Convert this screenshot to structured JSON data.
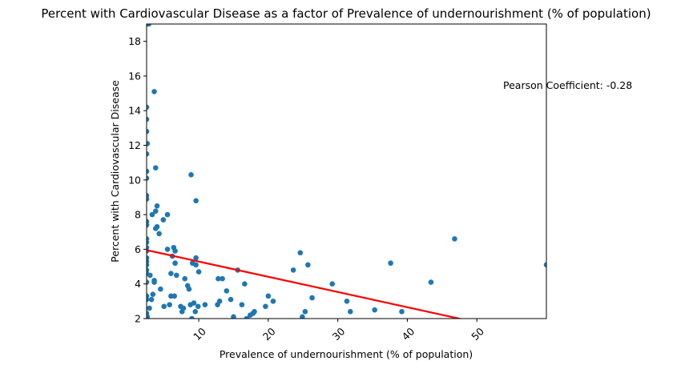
{
  "chart_data": {
    "type": "scatter",
    "title": "Percent with Cardiovascular Disease as a factor of Prevalence of undernourishment (% of population)",
    "xlabel": "Prevalence of undernourishment (% of population)",
    "ylabel": "Percent with Cardiovascular Disease",
    "xlim": [
      2.5,
      60
    ],
    "ylim": [
      2,
      19
    ],
    "xticks": [
      10,
      20,
      30,
      40,
      50
    ],
    "yticks": [
      2,
      4,
      6,
      8,
      10,
      12,
      14,
      16,
      18
    ],
    "grid": false,
    "annotation": "Pearson Coefficient: -0.28",
    "marker_color": "#1f77b4",
    "trendline_color": "#ff0000",
    "trendline": {
      "x": [
        2.5,
        48
      ],
      "y": [
        5.95,
        1.95
      ]
    },
    "points": [
      [
        2.5,
        19.0
      ],
      [
        2.8,
        19.0
      ],
      [
        2.5,
        14.2
      ],
      [
        2.5,
        13.5
      ],
      [
        2.5,
        12.8
      ],
      [
        2.6,
        12.1
      ],
      [
        2.5,
        11.5
      ],
      [
        2.5,
        10.5
      ],
      [
        2.5,
        10.1
      ],
      [
        2.5,
        9.1
      ],
      [
        2.5,
        8.9
      ],
      [
        2.5,
        7.6
      ],
      [
        2.5,
        7.4
      ],
      [
        2.5,
        6.6
      ],
      [
        2.5,
        6.4
      ],
      [
        2.5,
        6.1
      ],
      [
        2.5,
        5.9
      ],
      [
        2.5,
        5.5
      ],
      [
        2.5,
        5.3
      ],
      [
        2.5,
        5.1
      ],
      [
        2.5,
        4.8
      ],
      [
        2.5,
        4.6
      ],
      [
        2.5,
        4.1
      ],
      [
        2.5,
        3.3
      ],
      [
        2.5,
        3.1
      ],
      [
        2.5,
        2.3
      ],
      [
        2.6,
        2.1
      ],
      [
        2.9,
        2.6
      ],
      [
        3.0,
        4.5
      ],
      [
        3.2,
        3.1
      ],
      [
        3.3,
        8.0
      ],
      [
        3.4,
        3.4
      ],
      [
        3.6,
        15.1
      ],
      [
        3.6,
        4.2
      ],
      [
        3.6,
        4.1
      ],
      [
        3.8,
        7.2
      ],
      [
        3.8,
        10.7
      ],
      [
        3.8,
        8.2
      ],
      [
        4.0,
        8.5
      ],
      [
        4.0,
        7.3
      ],
      [
        4.3,
        6.9
      ],
      [
        4.5,
        3.7
      ],
      [
        4.9,
        7.7
      ],
      [
        5.0,
        2.7
      ],
      [
        5.5,
        6.0
      ],
      [
        5.5,
        8.0
      ],
      [
        5.8,
        2.8
      ],
      [
        6.0,
        4.6
      ],
      [
        6.0,
        3.3
      ],
      [
        6.2,
        5.6
      ],
      [
        6.4,
        6.1
      ],
      [
        6.5,
        3.3
      ],
      [
        6.6,
        5.9
      ],
      [
        6.6,
        5.2
      ],
      [
        6.8,
        4.5
      ],
      [
        7.4,
        2.7
      ],
      [
        7.6,
        2.4
      ],
      [
        7.8,
        2.6
      ],
      [
        8.0,
        4.3
      ],
      [
        8.4,
        3.9
      ],
      [
        8.6,
        3.7
      ],
      [
        8.8,
        2.8
      ],
      [
        8.9,
        10.3
      ],
      [
        9.0,
        2.0
      ],
      [
        9.1,
        5.2
      ],
      [
        9.3,
        2.9
      ],
      [
        9.5,
        2.4
      ],
      [
        9.6,
        5.5
      ],
      [
        9.6,
        8.8
      ],
      [
        9.6,
        5.1
      ],
      [
        9.9,
        2.7
      ],
      [
        10.0,
        4.7
      ],
      [
        10.9,
        2.8
      ],
      [
        12.7,
        2.8
      ],
      [
        12.8,
        4.3
      ],
      [
        13.0,
        3.0
      ],
      [
        13.4,
        4.3
      ],
      [
        14.0,
        3.6
      ],
      [
        14.6,
        3.1
      ],
      [
        15.0,
        2.1
      ],
      [
        15.6,
        4.8
      ],
      [
        16.2,
        2.8
      ],
      [
        16.6,
        4.0
      ],
      [
        16.9,
        2.0
      ],
      [
        17.4,
        2.2
      ],
      [
        17.8,
        2.3
      ],
      [
        18.0,
        2.4
      ],
      [
        19.6,
        2.7
      ],
      [
        20.0,
        3.3
      ],
      [
        20.7,
        3.0
      ],
      [
        23.6,
        4.8
      ],
      [
        24.6,
        5.8
      ],
      [
        24.9,
        2.1
      ],
      [
        25.3,
        2.4
      ],
      [
        25.7,
        5.1
      ],
      [
        26.3,
        3.2
      ],
      [
        29.2,
        4.0
      ],
      [
        31.3,
        3.0
      ],
      [
        31.8,
        2.4
      ],
      [
        35.3,
        2.5
      ],
      [
        37.6,
        5.2
      ],
      [
        39.2,
        2.4
      ],
      [
        43.4,
        4.1
      ],
      [
        46.8,
        6.6
      ],
      [
        60.0,
        5.1
      ]
    ]
  }
}
